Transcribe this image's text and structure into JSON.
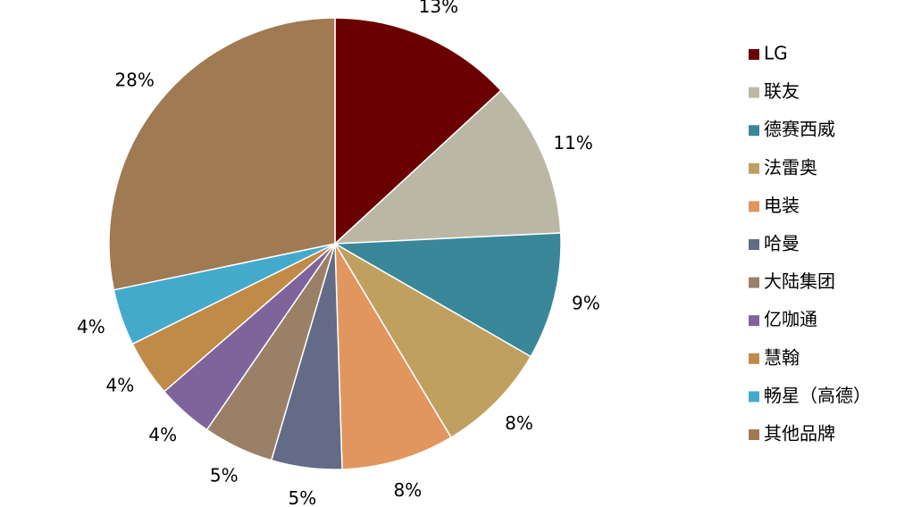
{
  "chart_data": {
    "type": "pie",
    "categories": [
      "LG",
      "联友",
      "德赛西威",
      "法雷奥",
      "电装",
      "哈曼",
      "大陆集团",
      "亿咖通",
      "慧翰",
      "畅星（高德）",
      "其他品牌"
    ],
    "values": [
      13,
      11,
      9,
      8,
      8,
      5,
      5,
      4,
      4,
      4,
      28
    ],
    "value_labels": [
      "13%",
      "11%",
      "9%",
      "8%",
      "8%",
      "5%",
      "5%",
      "4%",
      "4%",
      "4%",
      "28%"
    ],
    "colors": [
      "#6b0000",
      "#bab8a5",
      "#3a879a",
      "#c0a060",
      "#e0965e",
      "#646b86",
      "#9b8068",
      "#7f649c",
      "#c08a48",
      "#44aacc",
      "#a07a52"
    ],
    "legend": "right"
  }
}
